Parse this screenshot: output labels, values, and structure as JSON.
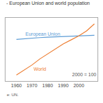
{
  "chart_data": {
    "type": "line",
    "title": "- European Union and world population",
    "x": [
      1960,
      1965,
      1970,
      1975,
      1980,
      1985,
      1990,
      1995,
      2000,
      2005,
      2010
    ],
    "series": [
      {
        "name": "European Union",
        "color": "#5b9bd5",
        "values": [
          96.5,
          97.2,
          97.8,
          98.3,
          98.7,
          99.1,
          99.4,
          99.7,
          100.0,
          100.3,
          100.6
        ]
      },
      {
        "name": "World",
        "color": "#ed7d31",
        "values": [
          61,
          66,
          71,
          77,
          82,
          87,
          92,
          96,
          100,
          105,
          112
        ]
      }
    ],
    "annotations": [
      "2000 = 100",
      "e: UN."
    ],
    "xlim": [
      1953,
      2012
    ],
    "xticks": [
      1960,
      1970,
      1980,
      1990,
      2000
    ],
    "ylim": [
      55,
      118
    ],
    "yticks": [],
    "grid": false,
    "tick_labels": "x"
  }
}
